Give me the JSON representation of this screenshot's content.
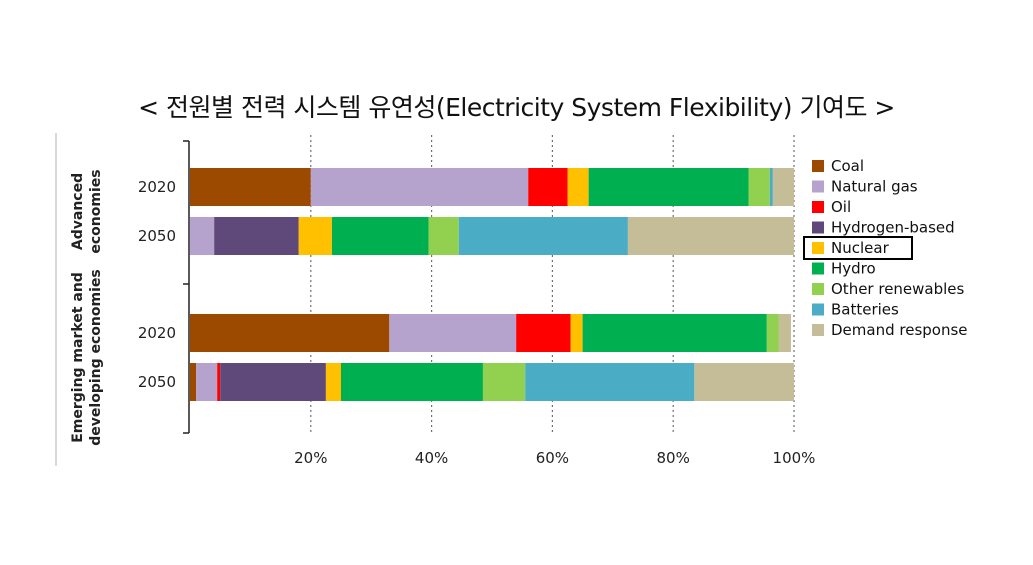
{
  "chart_data": {
    "type": "bar",
    "orientation": "horizontal",
    "stacked": true,
    "normalized": true,
    "title": "< 전원별 전력 시스템 유연성(Electricity System Flexibility) 기여도 >",
    "xlim": [
      0,
      100
    ],
    "x_ticks": [
      "20%",
      "40%",
      "60%",
      "80%",
      "100%"
    ],
    "grid": "vertical dotted",
    "legend_position": "right",
    "highlighted_legend_entry": "Nuclear",
    "groups": [
      {
        "label_lines": [
          "Advanced",
          "economies"
        ]
      },
      {
        "label_lines": [
          "Emerging market and",
          "developing economies"
        ]
      }
    ],
    "categories": [
      {
        "group": 0,
        "year": "2020"
      },
      {
        "group": 0,
        "year": "2050"
      },
      {
        "group": 1,
        "year": "2020"
      },
      {
        "group": 1,
        "year": "2050"
      }
    ],
    "series": [
      {
        "name": "Coal",
        "color": "#9C4A00",
        "values": [
          20,
          0,
          33,
          1
        ]
      },
      {
        "name": "Natural gas",
        "color": "#B5A3CE",
        "values": [
          36,
          4,
          21,
          3.5
        ]
      },
      {
        "name": "Oil",
        "color": "#FF0000",
        "values": [
          6.5,
          0,
          9,
          0.5
        ]
      },
      {
        "name": "Hydrogen-based",
        "color": "#5F497A",
        "values": [
          0,
          14,
          0,
          17.5
        ]
      },
      {
        "name": "Nuclear",
        "color": "#FFC000",
        "values": [
          3.5,
          5.5,
          2,
          2.5
        ]
      },
      {
        "name": "Hydro",
        "color": "#00B050",
        "values": [
          26.5,
          16,
          30.5,
          23.5
        ]
      },
      {
        "name": "Other renewables",
        "color": "#92D050",
        "values": [
          3.5,
          5,
          2,
          7
        ]
      },
      {
        "name": "Batteries",
        "color": "#4BACC6",
        "values": [
          0.5,
          28,
          0,
          28
        ]
      },
      {
        "name": "Demand response",
        "color": "#C4BD97",
        "values": [
          3.5,
          27.5,
          2,
          16.5
        ]
      }
    ]
  }
}
